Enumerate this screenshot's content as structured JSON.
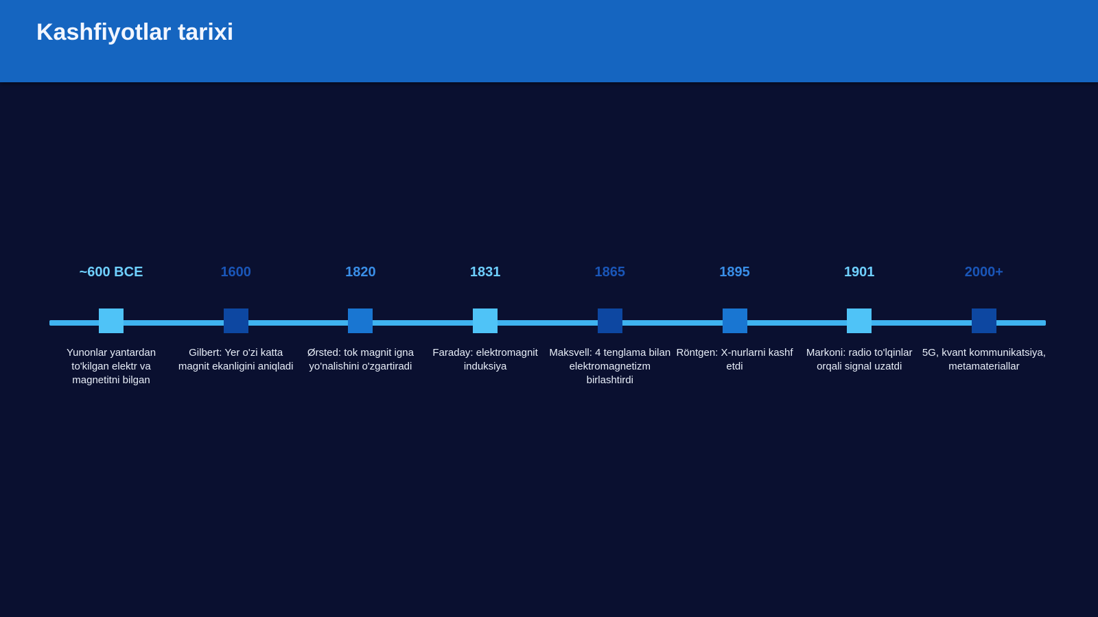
{
  "header": {
    "title": "Kashfiyotlar tarixi"
  },
  "timeline": {
    "events": [
      {
        "year": "~600 BCE",
        "description": "Yunonlar yantardan to'kilgan elektr va magnetitni bilgan"
      },
      {
        "year": "1600",
        "description": "Gilbert: Yer o'zi katta magnit ekanligini aniqladi"
      },
      {
        "year": "1820",
        "description": "Ørsted: tok magnit igna yo'nalishini o'zgartiradi"
      },
      {
        "year": "1831",
        "description": "Faraday: elektromagnit induksiya"
      },
      {
        "year": "1865",
        "description": "Maksvell: 4 tenglama bilan elektromagnetizm birlashtirdi"
      },
      {
        "year": "1895",
        "description": "Röntgen: X-nurlarni kashf etdi"
      },
      {
        "year": "1901",
        "description": "Markoni: radio to'lqinlar orqali signal uzatdi"
      },
      {
        "year": "2000+",
        "description": "5G, kvant kommunikatsiya, metamateriallar"
      }
    ]
  }
}
